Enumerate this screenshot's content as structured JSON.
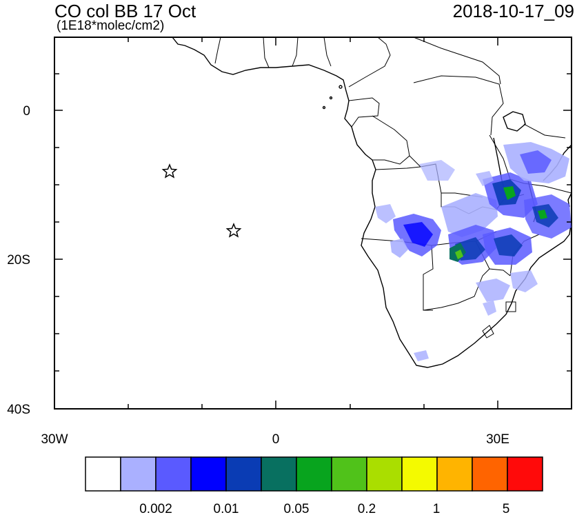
{
  "title": "CO col BB 17 Oct",
  "units": "(1E18*molec/cm2)",
  "datetime": "2018-10-17_09",
  "axes": {
    "y_ticks": [
      "0",
      "20S",
      "40S"
    ],
    "x_ticks": [
      "30W",
      "0",
      "30E"
    ]
  },
  "colorbar": {
    "colors": [
      "#ffffff",
      "#aab0ff",
      "#5a5aff",
      "#0000ff",
      "#0a3cb4",
      "#087060",
      "#08a41e",
      "#50c21a",
      "#aade00",
      "#f4fa00",
      "#ffb400",
      "#ff6400",
      "#ff0a0a"
    ],
    "labels": [
      "0.002",
      "0.01",
      "0.05",
      "0.2",
      "1",
      "5"
    ]
  },
  "markers": [
    {
      "name": "star-1",
      "lon": -14.5,
      "lat": -8
    },
    {
      "name": "star-2",
      "lon": -5.7,
      "lat": -16
    }
  ]
}
